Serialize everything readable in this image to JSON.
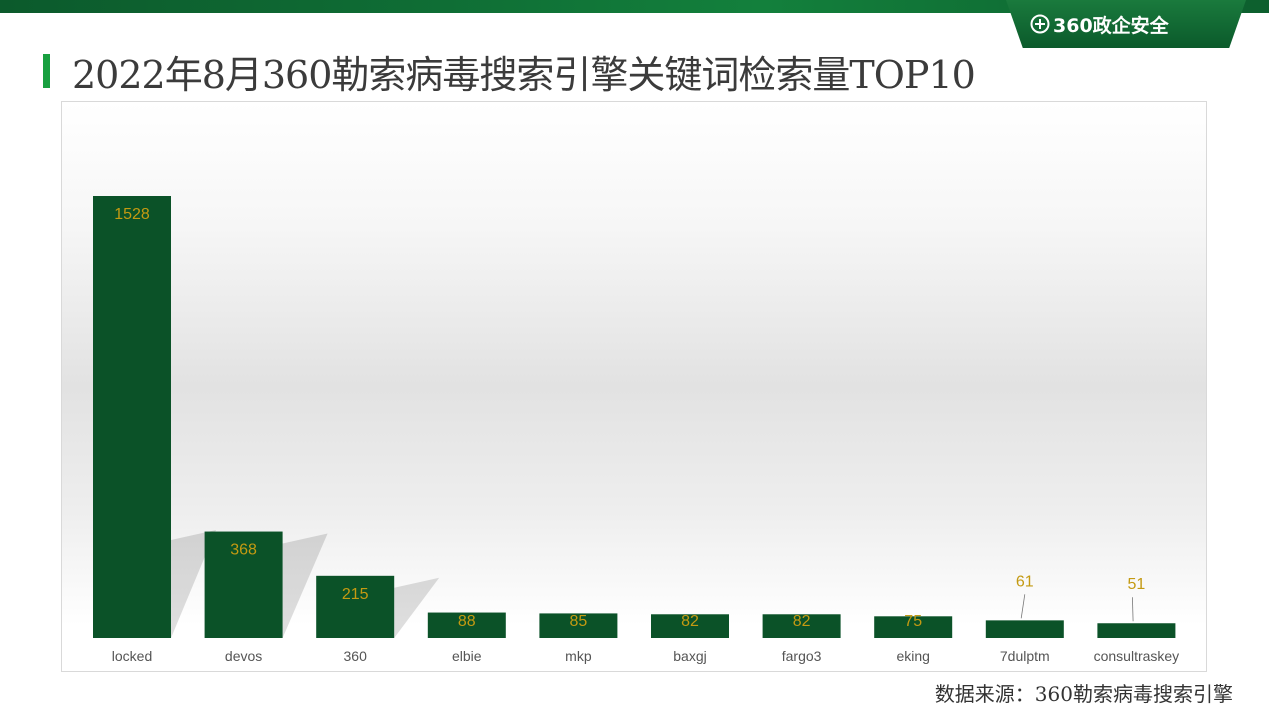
{
  "brand": {
    "name": "360政企安全",
    "icon": "plus-circle-icon",
    "color": "#0f6e35"
  },
  "header": {
    "title": "2022年8月360勒索病毒搜索引擎关键词检索量TOP10"
  },
  "footer": {
    "source": "数据来源：360勒索病毒搜索引擎"
  },
  "chart_data": {
    "type": "bar",
    "title": "",
    "xlabel": "",
    "ylabel": "",
    "categories": [
      "locked",
      "devos",
      "360",
      "elbie",
      "mkp",
      "baxgj",
      "fargo3",
      "eking",
      "7dulptm",
      "consultraskey"
    ],
    "values": [
      1528,
      368,
      215,
      88,
      85,
      82,
      82,
      75,
      61,
      51
    ],
    "ylim": [
      0,
      1528
    ],
    "grid": false,
    "legend": "none",
    "bar_color": "#0b5228",
    "label_color": "#c49a12",
    "axis_label_color": "#555555"
  }
}
